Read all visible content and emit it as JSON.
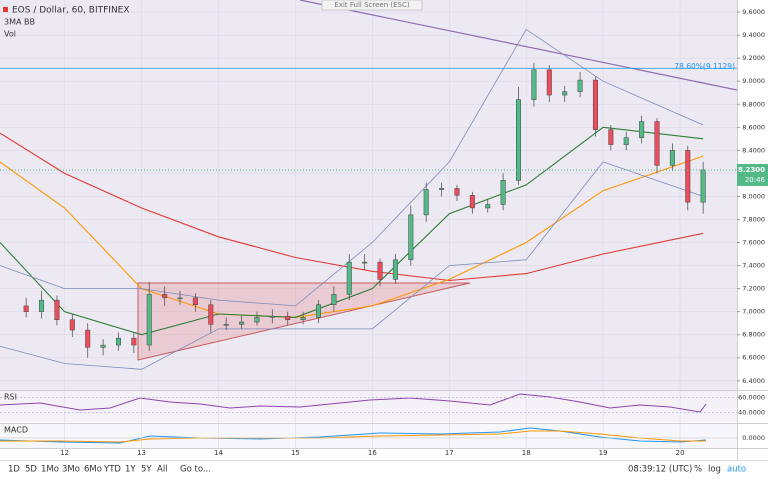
{
  "chart_data": {
    "type": "candlestick",
    "title": "EOS / Dollar, 60, BITFINEX",
    "indicator_label": "3MA BB",
    "volume_label": "Vol",
    "exit_button": "Exit Full Screen (ESC)",
    "bull_color": "#53b987",
    "bear_color": "#eb4d5c",
    "xlim": [
      11.16,
      20.74
    ],
    "xticks": [
      12,
      13,
      14,
      15,
      16,
      17,
      18,
      19,
      20
    ],
    "ylim": [
      6.32,
      9.705
    ],
    "yticks": [
      {
        "value": 6.4,
        "label": "6.4000"
      },
      {
        "value": 6.6,
        "label": "6.6000"
      },
      {
        "value": 6.8,
        "label": "6.8000"
      },
      {
        "value": 7.0,
        "label": "7.0000"
      },
      {
        "value": 7.2,
        "label": "7.2000"
      },
      {
        "value": 7.4,
        "label": "7.4000"
      },
      {
        "value": 7.6,
        "label": "7.6000"
      },
      {
        "value": 7.8,
        "label": "7.8000"
      },
      {
        "value": 8.0,
        "label": "8.0000"
      },
      {
        "value": 8.2,
        "label": "8.2000"
      },
      {
        "value": 8.4,
        "label": "8.4000"
      },
      {
        "value": 8.6,
        "label": "8.6000"
      },
      {
        "value": 8.8,
        "label": "8.8000"
      },
      {
        "value": 9.0,
        "label": "9.0000"
      },
      {
        "value": 9.2,
        "label": "9.2000"
      },
      {
        "value": 9.4,
        "label": "9.4000"
      },
      {
        "value": 9.6,
        "label": "9.6000"
      }
    ],
    "candles": {
      "x": [
        11.5,
        11.7,
        11.9,
        12.1,
        12.3,
        12.5,
        12.7,
        12.9,
        13.1,
        13.3,
        13.5,
        13.7,
        13.9,
        14.1,
        14.3,
        14.5,
        14.7,
        14.9,
        15.1,
        15.3,
        15.5,
        15.7,
        15.9,
        16.1,
        16.3,
        16.5,
        16.7,
        16.9,
        17.1,
        17.3,
        17.5,
        17.7,
        17.9,
        18.1,
        18.3,
        18.5,
        18.7,
        18.9,
        19.1,
        19.3,
        19.5,
        19.7,
        19.9,
        20.1,
        20.3
      ],
      "open": [
        7.05,
        7.0,
        7.1,
        6.93,
        6.84,
        6.69,
        6.71,
        6.77,
        6.71,
        7.15,
        7.12,
        7.12,
        7.06,
        6.89,
        6.89,
        6.91,
        6.95,
        6.96,
        6.93,
        6.95,
        7.06,
        7.15,
        7.43,
        7.43,
        7.28,
        7.45,
        7.84,
        8.06,
        8.07,
        8.01,
        7.9,
        7.93,
        8.14,
        8.84,
        9.1,
        8.88,
        8.91,
        9.01,
        8.58,
        8.45,
        8.51,
        8.65,
        8.27,
        8.4,
        7.95
      ],
      "high": [
        7.12,
        7.18,
        7.14,
        6.98,
        6.9,
        6.76,
        6.82,
        6.82,
        7.26,
        7.22,
        7.18,
        7.16,
        7.1,
        6.95,
        6.97,
        7.0,
        7.02,
        7.0,
        7.0,
        7.1,
        7.22,
        7.5,
        7.5,
        7.46,
        7.5,
        7.92,
        8.12,
        8.12,
        8.1,
        8.04,
        7.98,
        8.2,
        8.95,
        9.16,
        9.14,
        8.96,
        9.08,
        9.04,
        8.62,
        8.56,
        8.7,
        8.68,
        8.46,
        8.44,
        8.3
      ],
      "low": [
        6.95,
        6.94,
        6.88,
        6.78,
        6.6,
        6.62,
        6.66,
        6.64,
        6.66,
        7.05,
        7.06,
        7.0,
        6.82,
        6.84,
        6.85,
        6.88,
        6.9,
        6.88,
        6.89,
        6.9,
        7.0,
        7.1,
        7.36,
        7.22,
        7.24,
        7.4,
        7.78,
        8.0,
        7.96,
        7.85,
        7.86,
        7.88,
        8.1,
        8.78,
        8.82,
        8.82,
        8.86,
        8.52,
        8.4,
        8.4,
        8.46,
        8.2,
        8.22,
        7.88,
        7.85
      ],
      "close": [
        7.0,
        7.1,
        6.93,
        6.84,
        6.69,
        6.71,
        6.77,
        6.71,
        7.15,
        7.12,
        7.12,
        7.06,
        6.89,
        6.89,
        6.91,
        6.95,
        6.96,
        6.93,
        6.95,
        7.06,
        7.15,
        7.43,
        7.43,
        7.28,
        7.45,
        7.84,
        8.06,
        8.07,
        8.01,
        7.9,
        7.93,
        8.14,
        8.84,
        9.1,
        8.88,
        8.91,
        9.01,
        8.58,
        8.45,
        8.51,
        8.65,
        8.27,
        8.4,
        7.95,
        8.23
      ]
    },
    "lines": [
      {
        "color": "#e53935",
        "x": [
          11.16,
          12,
          13,
          14,
          15,
          16,
          17,
          18,
          19,
          20.3
        ],
        "values": [
          8.55,
          8.2,
          7.9,
          7.65,
          7.47,
          7.35,
          7.27,
          7.33,
          7.5,
          7.68
        ]
      },
      {
        "color": "#ff9800",
        "x": [
          11.16,
          12,
          13,
          14,
          15,
          16,
          17,
          18,
          19,
          20.3
        ],
        "values": [
          8.3,
          7.9,
          7.2,
          6.98,
          6.95,
          7.05,
          7.28,
          7.6,
          8.05,
          8.35
        ]
      },
      {
        "color": "#2e7d32",
        "x": [
          11.16,
          12,
          13,
          14,
          15,
          16,
          17,
          18,
          19,
          20.3
        ],
        "values": [
          7.6,
          7.0,
          6.8,
          6.98,
          6.95,
          7.2,
          7.85,
          8.1,
          8.6,
          8.5
        ]
      },
      {
        "color": "#7b8ab8",
        "x": [
          11.16,
          12,
          13,
          14,
          15,
          16,
          17,
          18,
          19,
          20.3
        ],
        "values": [
          7.4,
          7.2,
          7.2,
          7.1,
          7.05,
          7.6,
          8.3,
          9.45,
          9.0,
          8.62
        ]
      },
      {
        "color": "#7b8ab8",
        "x": [
          11.16,
          12,
          13,
          14,
          15,
          16,
          17,
          18,
          19,
          20.3
        ],
        "values": [
          6.7,
          6.55,
          6.5,
          6.85,
          6.85,
          6.85,
          7.4,
          7.45,
          8.3,
          8.0
        ]
      }
    ],
    "fib_level": {
      "value": 9.1129,
      "label": "78.60%(9.1129)"
    },
    "last_price": {
      "value": 8.23,
      "label": "8.2300"
    },
    "countdown": "20:46",
    "rsi_label": "RSI",
    "rsi_ylim": [
      27,
      69
    ],
    "rsi_yticks": [
      {
        "value": 60,
        "label": "60.0000"
      },
      {
        "value": 40,
        "label": "40.0000"
      }
    ],
    "macd_label": "MACD",
    "macd_ylim": [
      -0.23,
      0.32
    ],
    "macd_yticks": [
      {
        "value": 0,
        "label": "0.0000"
      }
    ],
    "toolbar": {
      "ranges": [
        "1D",
        "5D",
        "1Mo",
        "3Mo",
        "6Mo",
        "YTD",
        "1Y",
        "5Y",
        "All"
      ],
      "goto": "Go to...",
      "clock": "08:39:12 (UTC)",
      "percent": "%",
      "log": "log",
      "auto": "auto"
    }
  }
}
